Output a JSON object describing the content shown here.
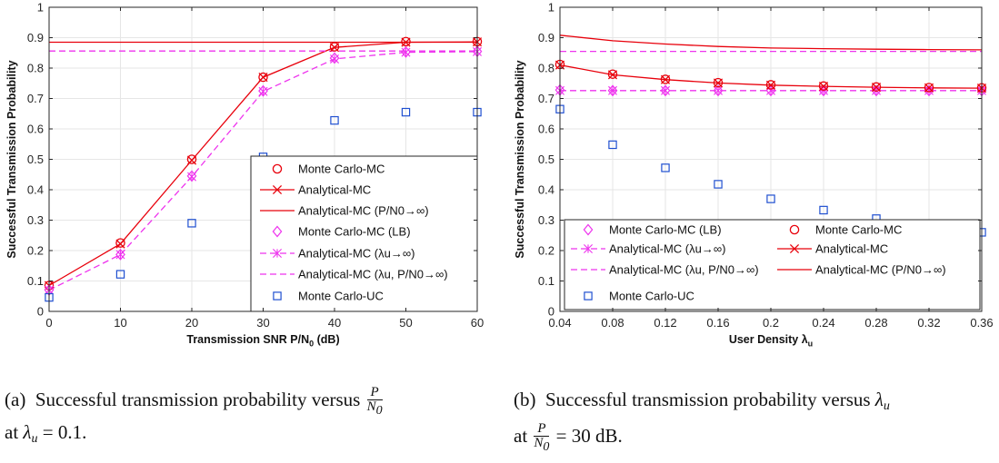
{
  "colors": {
    "red": "#e8000b",
    "magenta": "#ee33ee",
    "blue": "#1f4fd0",
    "grid": "#e6e6e6",
    "axis": "#262626"
  },
  "chart_data": [
    {
      "type": "line",
      "xlabel": "Transmission SNR P/N",
      "xlabel_sub": "0",
      "xlabel_tail": " (dB)",
      "ylabel": "Successful Transmission Probability",
      "xlim": [
        0,
        60
      ],
      "ylim": [
        0,
        1
      ],
      "grid": true,
      "xticks": [
        0,
        10,
        20,
        30,
        40,
        50,
        60
      ],
      "yticks": [
        0,
        0.1,
        0.2,
        0.3,
        0.4,
        0.5,
        0.6,
        0.7,
        0.8,
        0.9,
        1
      ],
      "legend_position": "bottom-right",
      "series": [
        {
          "name": "Monte Carlo-MC",
          "color": "red",
          "marker": "circle",
          "line": "none",
          "x": [
            0,
            10,
            20,
            30,
            40,
            50,
            60
          ],
          "y": [
            0.085,
            0.225,
            0.5,
            0.77,
            0.87,
            0.887,
            0.887
          ]
        },
        {
          "name": "Analytical-MC",
          "color": "red",
          "marker": "x",
          "line": "solid",
          "x": [
            0,
            10,
            20,
            30,
            40,
            50,
            60
          ],
          "y": [
            0.085,
            0.222,
            0.497,
            0.77,
            0.868,
            0.885,
            0.886
          ]
        },
        {
          "name": "Analytical-MC (P/N0→∞)",
          "color": "red",
          "marker": "none",
          "line": "solid",
          "x": [
            0,
            60
          ],
          "y": [
            0.885,
            0.885
          ]
        },
        {
          "name": "Monte Carlo-MC (LB)",
          "color": "magenta",
          "marker": "diamond",
          "line": "none",
          "x": [
            0,
            10,
            20,
            30,
            40,
            50,
            60
          ],
          "y": [
            0.07,
            0.187,
            0.445,
            0.725,
            0.833,
            0.853,
            0.855
          ]
        },
        {
          "name": "Analytical-MC (λu→∞)",
          "color": "magenta",
          "marker": "star",
          "line": "dashed",
          "x": [
            0,
            10,
            20,
            30,
            40,
            50,
            60
          ],
          "y": [
            0.07,
            0.187,
            0.443,
            0.723,
            0.83,
            0.852,
            0.854
          ]
        },
        {
          "name": "Analytical-MC (λu, P/N0→∞)",
          "color": "magenta",
          "marker": "none",
          "line": "dashed",
          "x": [
            0,
            60
          ],
          "y": [
            0.856,
            0.856
          ]
        },
        {
          "name": "Monte Carlo-UC",
          "color": "blue",
          "marker": "square",
          "line": "none",
          "x": [
            0,
            10,
            20,
            30,
            40,
            50,
            60
          ],
          "y": [
            0.046,
            0.122,
            0.29,
            0.508,
            0.628,
            0.655,
            0.655
          ]
        }
      ]
    },
    {
      "type": "line",
      "xlabel": "User Density λ",
      "xlabel_sub": "u",
      "xlabel_tail": "",
      "ylabel": "Successful Transmission Probability",
      "xlim": [
        0.04,
        0.36
      ],
      "ylim": [
        0,
        1
      ],
      "grid": true,
      "xticks": [
        0.04,
        0.08,
        0.12,
        0.16,
        0.2,
        0.24,
        0.28,
        0.32,
        0.36
      ],
      "xtick_labels": [
        "0.04",
        "0.08",
        "0.12",
        "0.16",
        "0.2",
        "0.24",
        "0.28",
        "0.32",
        "0.36"
      ],
      "yticks": [
        0,
        0.1,
        0.2,
        0.3,
        0.4,
        0.5,
        0.6,
        0.7,
        0.8,
        0.9,
        1
      ],
      "legend_position": "bottom, two columns",
      "series": [
        {
          "name": "Monte Carlo-MC (LB)",
          "color": "magenta",
          "marker": "diamond",
          "line": "none",
          "x": [
            0.04,
            0.08,
            0.12,
            0.16,
            0.2,
            0.24,
            0.28,
            0.32,
            0.36
          ],
          "y": [
            0.728,
            0.726,
            0.726,
            0.726,
            0.726,
            0.726,
            0.726,
            0.726,
            0.726
          ]
        },
        {
          "name": "Analytical-MC (λu→∞)",
          "color": "magenta",
          "marker": "star",
          "line": "dashed",
          "x": [
            0.04,
            0.08,
            0.12,
            0.16,
            0.2,
            0.24,
            0.28,
            0.32,
            0.36
          ],
          "y": [
            0.726,
            0.726,
            0.726,
            0.726,
            0.726,
            0.726,
            0.726,
            0.726,
            0.726
          ]
        },
        {
          "name": "Analytical-MC (λu, P/N0→∞)",
          "color": "magenta",
          "marker": "none",
          "line": "dashed",
          "x": [
            0.04,
            0.36
          ],
          "y": [
            0.855,
            0.855
          ]
        },
        {
          "name": "Monte Carlo-MC",
          "color": "red",
          "marker": "circle",
          "line": "none",
          "x": [
            0.04,
            0.08,
            0.12,
            0.16,
            0.2,
            0.24,
            0.28,
            0.32,
            0.36
          ],
          "y": [
            0.812,
            0.78,
            0.763,
            0.752,
            0.745,
            0.741,
            0.738,
            0.736,
            0.735
          ]
        },
        {
          "name": "Analytical-MC",
          "color": "red",
          "marker": "x",
          "line": "solid",
          "x": [
            0.04,
            0.08,
            0.12,
            0.16,
            0.2,
            0.24,
            0.28,
            0.32,
            0.36
          ],
          "y": [
            0.81,
            0.778,
            0.762,
            0.751,
            0.744,
            0.74,
            0.737,
            0.735,
            0.734
          ]
        },
        {
          "name": "Analytical-MC (P/N0→∞)",
          "color": "red",
          "marker": "none",
          "line": "solid",
          "x": [
            0.04,
            0.08,
            0.12,
            0.16,
            0.2,
            0.24,
            0.28,
            0.32,
            0.36
          ],
          "y": [
            0.908,
            0.89,
            0.879,
            0.871,
            0.866,
            0.864,
            0.862,
            0.861,
            0.86
          ]
        },
        {
          "name": "Monte Carlo-UC",
          "color": "blue",
          "marker": "square",
          "line": "none",
          "x": [
            0.04,
            0.08,
            0.12,
            0.16,
            0.2,
            0.24,
            0.28,
            0.32,
            0.36
          ],
          "y": [
            0.665,
            0.548,
            0.472,
            0.418,
            0.37,
            0.333,
            0.305,
            0.28,
            0.26
          ]
        }
      ]
    }
  ],
  "captions": [
    {
      "label": "(a)",
      "text": "Successful transmission probability versus",
      "frac_num": "P",
      "frac_den": "N",
      "frac_den_sub": "0",
      "line2_pre": "at ",
      "line2_var": "λ",
      "line2_var_sub": "u",
      "line2_post": " = 0.1."
    },
    {
      "label": "(b)",
      "text": "Successful transmission probability versus",
      "var": "λ",
      "var_sub": "u",
      "line2_pre": "at ",
      "frac_num": "P",
      "frac_den": "N",
      "frac_den_sub": "0",
      "line2_post": " = 30 dB."
    }
  ]
}
